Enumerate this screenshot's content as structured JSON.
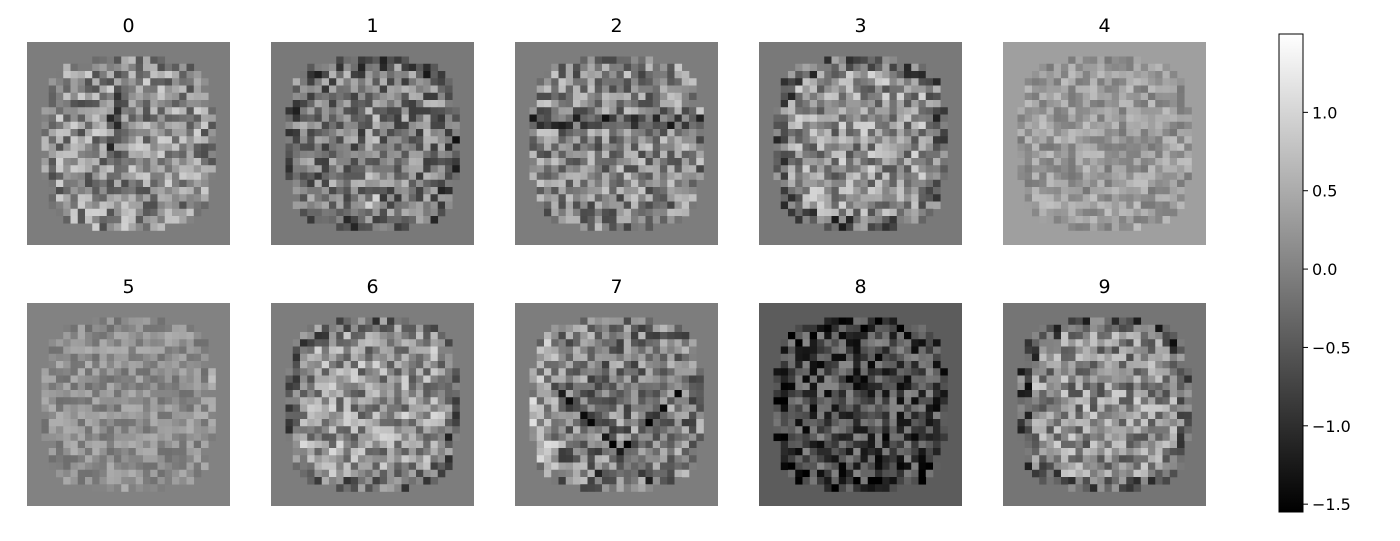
{
  "chart_data": {
    "type": "heatmap",
    "title": "",
    "panels": [
      {
        "label": "0",
        "bg": -0.05,
        "seed": 11,
        "style": "dark_center"
      },
      {
        "label": "1",
        "bg": -0.1,
        "seed": 23,
        "style": "dark_cols"
      },
      {
        "label": "2",
        "bg": -0.05,
        "seed": 37,
        "style": "band"
      },
      {
        "label": "3",
        "bg": -0.1,
        "seed": 41,
        "style": "ring"
      },
      {
        "label": "4",
        "bg": 0.35,
        "seed": 53,
        "style": "light"
      },
      {
        "label": "5",
        "bg": 0.0,
        "seed": 67,
        "style": "faint"
      },
      {
        "label": "6",
        "bg": -0.05,
        "seed": 71,
        "style": "ring"
      },
      {
        "label": "7",
        "bg": -0.05,
        "seed": 83,
        "style": "diag"
      },
      {
        "label": "8",
        "bg": -0.45,
        "seed": 97,
        "style": "dark"
      },
      {
        "label": "9",
        "bg": -0.15,
        "seed": 103,
        "style": "ring"
      }
    ],
    "grid_size": 28,
    "colorbar": {
      "colormap": "gray",
      "vmin": -1.55,
      "vmax": 1.5,
      "ticks": [
        -1.5,
        -1.0,
        -0.5,
        0.0,
        0.5,
        1.0
      ],
      "tick_labels": [
        "−1.5",
        "−1.0",
        "−0.5",
        "0.0",
        "0.5",
        "1.0"
      ]
    }
  }
}
